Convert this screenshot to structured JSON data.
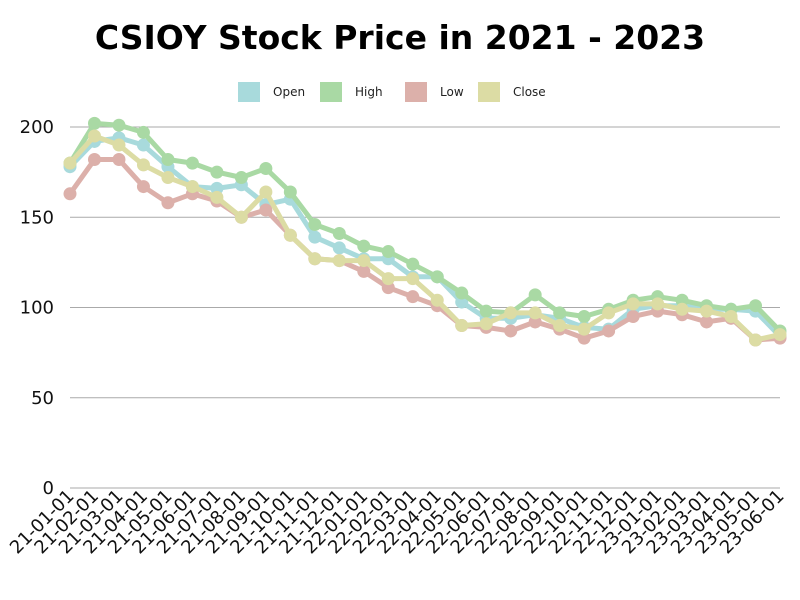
{
  "chart_data": {
    "type": "line",
    "title": "CSIOY Stock Price in 2021 - 2023",
    "xlabel": "",
    "ylabel": "",
    "ylim": [
      0,
      200
    ],
    "yticks": [
      0,
      50,
      100,
      150,
      200
    ],
    "grid": true,
    "legend_position": "top-center",
    "categories": [
      "21-01-01",
      "21-02-01",
      "21-03-01",
      "21-04-01",
      "21-05-01",
      "21-06-01",
      "21-07-01",
      "21-08-01",
      "21-09-01",
      "21-10-01",
      "21-11-01",
      "21-12-01",
      "22-01-01",
      "22-02-01",
      "22-03-01",
      "22-04-01",
      "22-05-01",
      "22-06-01",
      "22-07-01",
      "22-08-01",
      "22-09-01",
      "22-10-01",
      "22-11-01",
      "22-12-01",
      "23-01-01",
      "23-02-01",
      "23-03-01",
      "23-04-01",
      "23-05-01",
      "23-06-01"
    ],
    "series": [
      {
        "name": "Open",
        "color": "#a8dadc",
        "values": [
          178,
          192,
          194,
          190,
          178,
          167,
          166,
          168,
          157,
          160,
          139,
          133,
          127,
          127,
          117,
          117,
          103,
          94,
          94,
          96,
          94,
          89,
          88,
          99,
          101,
          101,
          99,
          99,
          98,
          84
        ]
      },
      {
        "name": "High",
        "color": "#a9d9a4",
        "values": [
          180,
          202,
          201,
          197,
          182,
          180,
          175,
          172,
          177,
          164,
          146,
          141,
          134,
          131,
          124,
          117,
          108,
          98,
          97,
          107,
          97,
          95,
          99,
          104,
          106,
          104,
          101,
          99,
          101,
          87
        ]
      },
      {
        "name": "Low",
        "color": "#dcb0aa",
        "values": [
          163,
          182,
          182,
          167,
          158,
          163,
          159,
          150,
          154,
          140,
          127,
          126,
          120,
          111,
          106,
          101,
          90,
          89,
          87,
          92,
          88,
          83,
          87,
          95,
          98,
          96,
          92,
          94,
          82,
          83
        ]
      },
      {
        "name": "Close",
        "color": "#dcdca4",
        "values": [
          180,
          195,
          190,
          179,
          172,
          167,
          161,
          150,
          164,
          140,
          127,
          126,
          126,
          116,
          116,
          104,
          90,
          91,
          97,
          97,
          90,
          88,
          97,
          102,
          102,
          99,
          98,
          95,
          82,
          85
        ]
      }
    ]
  }
}
